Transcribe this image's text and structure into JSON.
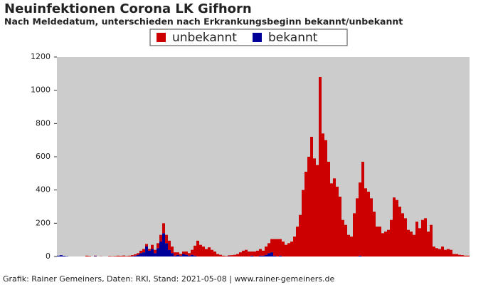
{
  "chart_data": {
    "type": "stacked_bar",
    "title": "Neuinfektionen Corona LK Gifhorn",
    "subtitle": "Nach Meldedatum, unterschieden nach Erkrankungsbeginn bekannt/unbekannt",
    "source": "Grafik: Rainer Gemeiners, Daten: RKI, Stand: 2021-05-08 | www.rainer-gemeiners.de",
    "legend": "top",
    "grid": false,
    "ylim": [
      0,
      1200
    ],
    "yticks": [
      0,
      200,
      400,
      600,
      800,
      1000,
      1200
    ],
    "categories": [
      null,
      null,
      null,
      null,
      null,
      null,
      null,
      null,
      null,
      null,
      null,
      null,
      null,
      null,
      null,
      null,
      null,
      null,
      null,
      null,
      null,
      null,
      null,
      null,
      null,
      null,
      null,
      null,
      null,
      null,
      null,
      null,
      null,
      null,
      null,
      null,
      null,
      null,
      null,
      null,
      null,
      null,
      null,
      null,
      null,
      null,
      null,
      null,
      null,
      null,
      null,
      null,
      null,
      null,
      null,
      null,
      null,
      null,
      null,
      null,
      null,
      null,
      null,
      null,
      null,
      null,
      null,
      null,
      null,
      null,
      null,
      null,
      null,
      null,
      null,
      null,
      null,
      null,
      null,
      null,
      null,
      null,
      null,
      null,
      null,
      null,
      null,
      null,
      null,
      null,
      null,
      null,
      null,
      null,
      null,
      null,
      null,
      null,
      null,
      null,
      null,
      null,
      null,
      null,
      null,
      null,
      null,
      null,
      null,
      null,
      null,
      null,
      null,
      null,
      null,
      null,
      null,
      null,
      null,
      null,
      null,
      null,
      null,
      null,
      null,
      null,
      null,
      null,
      null,
      null,
      null,
      null,
      null,
      null,
      null,
      null,
      null,
      null,
      null,
      null,
      null,
      null,
      null,
      null,
      null
    ],
    "series": [
      {
        "name": "unbekannt",
        "color": "#cc0000",
        "values": [
          0,
          0,
          0,
          0,
          0,
          0,
          0,
          0,
          0,
          0,
          5,
          3,
          0,
          2,
          0,
          1,
          0,
          0,
          3,
          2,
          3,
          5,
          4,
          6,
          3,
          5,
          6,
          8,
          10,
          15,
          20,
          15,
          10,
          25,
          20,
          30,
          40,
          60,
          50,
          55,
          40,
          20,
          15,
          10,
          15,
          20,
          15,
          30,
          60,
          95,
          70,
          60,
          45,
          55,
          40,
          30,
          15,
          10,
          5,
          3,
          5,
          8,
          10,
          15,
          25,
          35,
          40,
          30,
          25,
          30,
          35,
          40,
          30,
          50,
          60,
          80,
          100,
          105,
          100,
          90,
          70,
          80,
          90,
          120,
          180,
          250,
          400,
          510,
          600,
          720,
          590,
          550,
          1080,
          740,
          700,
          570,
          440,
          470,
          420,
          360,
          220,
          190,
          130,
          120,
          260,
          350,
          440,
          570,
          410,
          390,
          350,
          270,
          180,
          180,
          140,
          150,
          160,
          220,
          355,
          340,
          300,
          260,
          230,
          160,
          150,
          130,
          210,
          170,
          220,
          230,
          150,
          190,
          60,
          50,
          45,
          60,
          40,
          45,
          40,
          15,
          15,
          10,
          8,
          5,
          5
        ]
      },
      {
        "name": "bekannt",
        "color": "#000099",
        "values": [
          5,
          8,
          4,
          2,
          0,
          0,
          0,
          0,
          0,
          0,
          0,
          0,
          0,
          3,
          0,
          0,
          0,
          0,
          0,
          0,
          0,
          0,
          0,
          0,
          0,
          0,
          2,
          5,
          10,
          20,
          25,
          60,
          35,
          45,
          20,
          50,
          90,
          140,
          80,
          40,
          20,
          5,
          10,
          5,
          15,
          10,
          5,
          10,
          5,
          0,
          0,
          0,
          0,
          0,
          0,
          0,
          0,
          0,
          0,
          0,
          2,
          0,
          0,
          0,
          0,
          0,
          0,
          0,
          5,
          0,
          0,
          5,
          5,
          10,
          20,
          25,
          5,
          0,
          5,
          0,
          0,
          0,
          0,
          0,
          0,
          0,
          0,
          0,
          0,
          0,
          0,
          0,
          0,
          0,
          0,
          0,
          0,
          0,
          0,
          0,
          0,
          0,
          0,
          0,
          0,
          0,
          5,
          0,
          0,
          0,
          0,
          0,
          0,
          0,
          0,
          0,
          0,
          0,
          0,
          0,
          0,
          0,
          0,
          0,
          0,
          0,
          0,
          0,
          0,
          0,
          0,
          0,
          0,
          0,
          0,
          0,
          0,
          0,
          0,
          0,
          0,
          0,
          0,
          0,
          0
        ]
      }
    ]
  }
}
